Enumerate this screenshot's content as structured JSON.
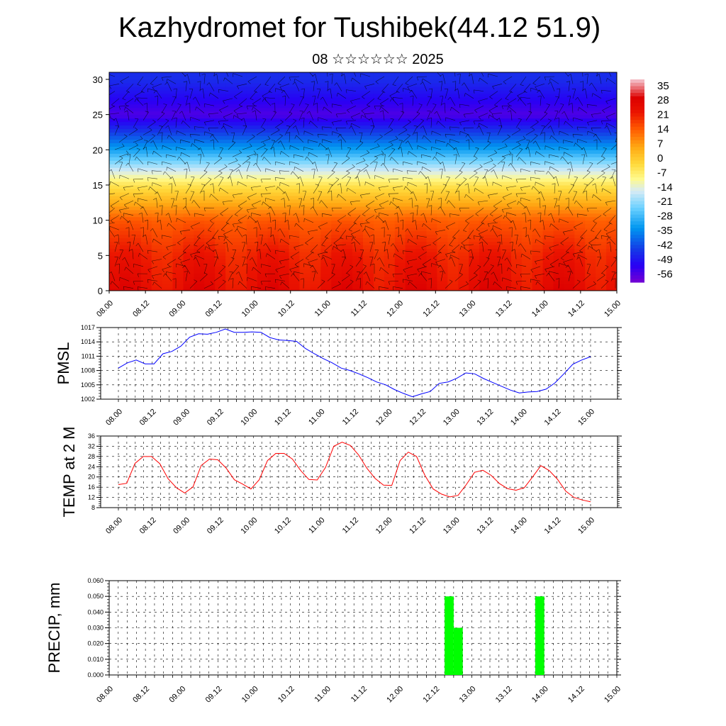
{
  "title": "Kazhydromet for Tushibek(44.12 51.9)",
  "subtitle": "08 ☆☆☆☆☆☆ 2025",
  "time_labels": [
    "08.00",
    "08.12",
    "09.00",
    "09.12",
    "10.00",
    "10.12",
    "11.00",
    "11.12",
    "12.00",
    "12.12",
    "13.00",
    "13.12",
    "14.00",
    "14.12",
    "15.00"
  ],
  "chart_data": [
    {
      "type": "heatmap",
      "description_free": true,
      "x_tick_labels": [
        "08.00",
        "08.12",
        "09.00",
        "09.12",
        "10.00",
        "10.12",
        "11.00",
        "11.12",
        "12.00",
        "12.12",
        "13.00",
        "13.12",
        "14.00",
        "14.12",
        "15.00"
      ],
      "y_tick_labels": [
        "0",
        "5",
        "10",
        "15",
        "20",
        "25",
        "30"
      ],
      "ylim": [
        0,
        31
      ],
      "colorbar_labels": [
        "35",
        "28",
        "21",
        "14",
        "7",
        "0",
        "-7",
        "-14",
        "-21",
        "-28",
        "-35",
        "-42",
        "-49",
        "-56"
      ],
      "colorbar_range": [
        -60,
        38
      ],
      "level_values": [
        0,
        5,
        10,
        15,
        20,
        25,
        30
      ],
      "level_temps": [
        25,
        21,
        14,
        -5,
        -32,
        -56,
        -46
      ],
      "wind_barbs": true
    },
    {
      "type": "line",
      "ylabel": "PMSL",
      "ylim": [
        1002,
        1017
      ],
      "y_tick_labels": [
        "1002",
        "1005",
        "1008",
        "1011",
        "1014",
        "1017"
      ],
      "x_tick_labels": [
        "08.00",
        "08.12",
        "09.00",
        "09.12",
        "10.00",
        "10.12",
        "11.00",
        "11.12",
        "12.00",
        "12.12",
        "13.00",
        "13.12",
        "14.00",
        "14.12",
        "15.00"
      ],
      "series": [
        {
          "color": "#0000ff",
          "values": [
            1008.5,
            1009.6,
            1010.2,
            1009.4,
            1009.4,
            1011.5,
            1012.0,
            1013.1,
            1015.0,
            1015.7,
            1015.6,
            1016.0,
            1016.7,
            1016.0,
            1016.0,
            1016.1,
            1016.0,
            1014.9,
            1014.4,
            1014.3,
            1014.1,
            1012.6,
            1011.5,
            1010.5,
            1009.6,
            1008.5,
            1008.0,
            1007.3,
            1006.5,
            1005.6,
            1005.0,
            1004.0,
            1003.2,
            1002.5,
            1003.1,
            1003.6,
            1005.3,
            1005.6,
            1006.4,
            1007.5,
            1007.3,
            1006.3,
            1005.5,
            1004.7,
            1003.9,
            1003.3,
            1003.5,
            1003.6,
            1004.1,
            1005.4,
            1007.3,
            1009.3,
            1010.2,
            1010.9
          ]
        }
      ]
    },
    {
      "type": "line",
      "ylabel": "TEMP at 2 M",
      "ylim": [
        8,
        36
      ],
      "y_tick_labels": [
        "8",
        "12",
        "16",
        "20",
        "24",
        "28",
        "32",
        "36"
      ],
      "x_tick_labels": [
        "08.00",
        "08.12",
        "09.00",
        "09.12",
        "10.00",
        "10.12",
        "11.00",
        "11.12",
        "12.00",
        "12.12",
        "13.00",
        "13.12",
        "14.00",
        "14.12",
        "15.00"
      ],
      "series": [
        {
          "color": "#ff0000",
          "values": [
            17.0,
            17.5,
            25.3,
            28.0,
            28.0,
            25.2,
            19.3,
            15.8,
            13.7,
            16.1,
            24.5,
            27.0,
            26.7,
            23.5,
            18.9,
            17.2,
            15.3,
            18.9,
            26.4,
            29.2,
            29.2,
            27.0,
            22.5,
            19.0,
            18.8,
            23.7,
            32.0,
            33.6,
            32.3,
            28.6,
            23.4,
            19.4,
            16.8,
            16.7,
            26.4,
            29.7,
            28.0,
            20.6,
            15.3,
            13.3,
            12.2,
            12.8,
            17.0,
            21.8,
            22.6,
            20.6,
            17.4,
            15.4,
            14.8,
            15.8,
            20.0,
            24.4,
            22.5,
            19.1,
            14.5,
            12.0,
            11.0,
            10.3
          ]
        }
      ]
    },
    {
      "type": "bar",
      "ylabel": "PRECIP, mm",
      "ylim": [
        0,
        0.06
      ],
      "y_tick_labels": [
        "0.000",
        "0.010",
        "0.020",
        "0.030",
        "0.040",
        "0.050",
        "0.060"
      ],
      "x_tick_labels": [
        "08.00",
        "08.12",
        "09.00",
        "09.12",
        "10.00",
        "10.12",
        "11.00",
        "11.12",
        "12.00",
        "12.12",
        "13.00",
        "13.12",
        "14.00",
        "14.12",
        "15.00"
      ],
      "bar_color": "#00ff00",
      "bars": [
        {
          "x_hours": 111,
          "value": 0.05
        },
        {
          "x_hours": 114,
          "value": 0.03
        },
        {
          "x_hours": 141,
          "value": 0.05
        }
      ]
    }
  ]
}
